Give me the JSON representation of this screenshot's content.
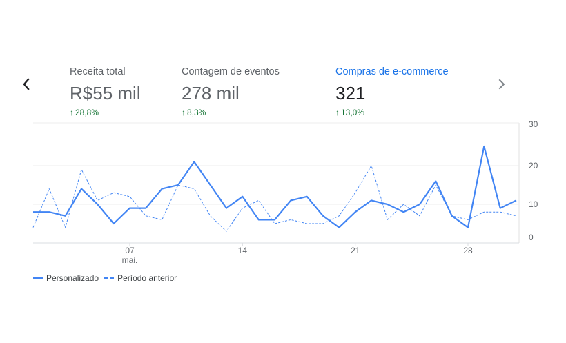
{
  "metrics": [
    {
      "title": "Receita total",
      "value": "R$55 mil",
      "change": "28,8%"
    },
    {
      "title": "Contagem de eventos",
      "value": "278 mil",
      "change": "8,3%"
    },
    {
      "title": "Compras de e-commerce",
      "value": "321",
      "change": "13,0%"
    }
  ],
  "colors": {
    "series": "#4285f4",
    "positive": "#137333",
    "active_metric": "#1a73e8"
  },
  "icons": {
    "prev": "chevron-left-icon",
    "next": "chevron-right-icon",
    "change": "arrow-up-icon"
  },
  "chart_data": {
    "type": "line",
    "x_ticks": [
      {
        "day": 7,
        "label": "07",
        "sublabel": "mai."
      },
      {
        "day": 14,
        "label": "14"
      },
      {
        "day": 21,
        "label": "21"
      },
      {
        "day": 28,
        "label": "28"
      }
    ],
    "x_range": [
      1,
      31
    ],
    "ylim": [
      0,
      30
    ],
    "y_ticks": [
      "0",
      "10",
      "20",
      "30"
    ],
    "grid": true,
    "legend_position": "bottom-left",
    "series": [
      {
        "name": "Personalizado",
        "style": "solid",
        "values": [
          8,
          8,
          7,
          14,
          10,
          5,
          9,
          9,
          14,
          15,
          21,
          15,
          9,
          12,
          6,
          6,
          11,
          12,
          7,
          4,
          8,
          11,
          10,
          8,
          10,
          16,
          7,
          4,
          25,
          9,
          11
        ]
      },
      {
        "name": "Período anterior",
        "style": "dashed",
        "values": [
          4,
          14,
          4,
          19,
          11,
          13,
          12,
          7,
          6,
          15,
          14,
          7,
          3,
          9,
          11,
          5,
          6,
          5,
          5,
          7,
          13,
          20,
          6,
          10,
          7,
          15,
          7,
          6,
          8,
          8,
          7
        ]
      }
    ]
  }
}
